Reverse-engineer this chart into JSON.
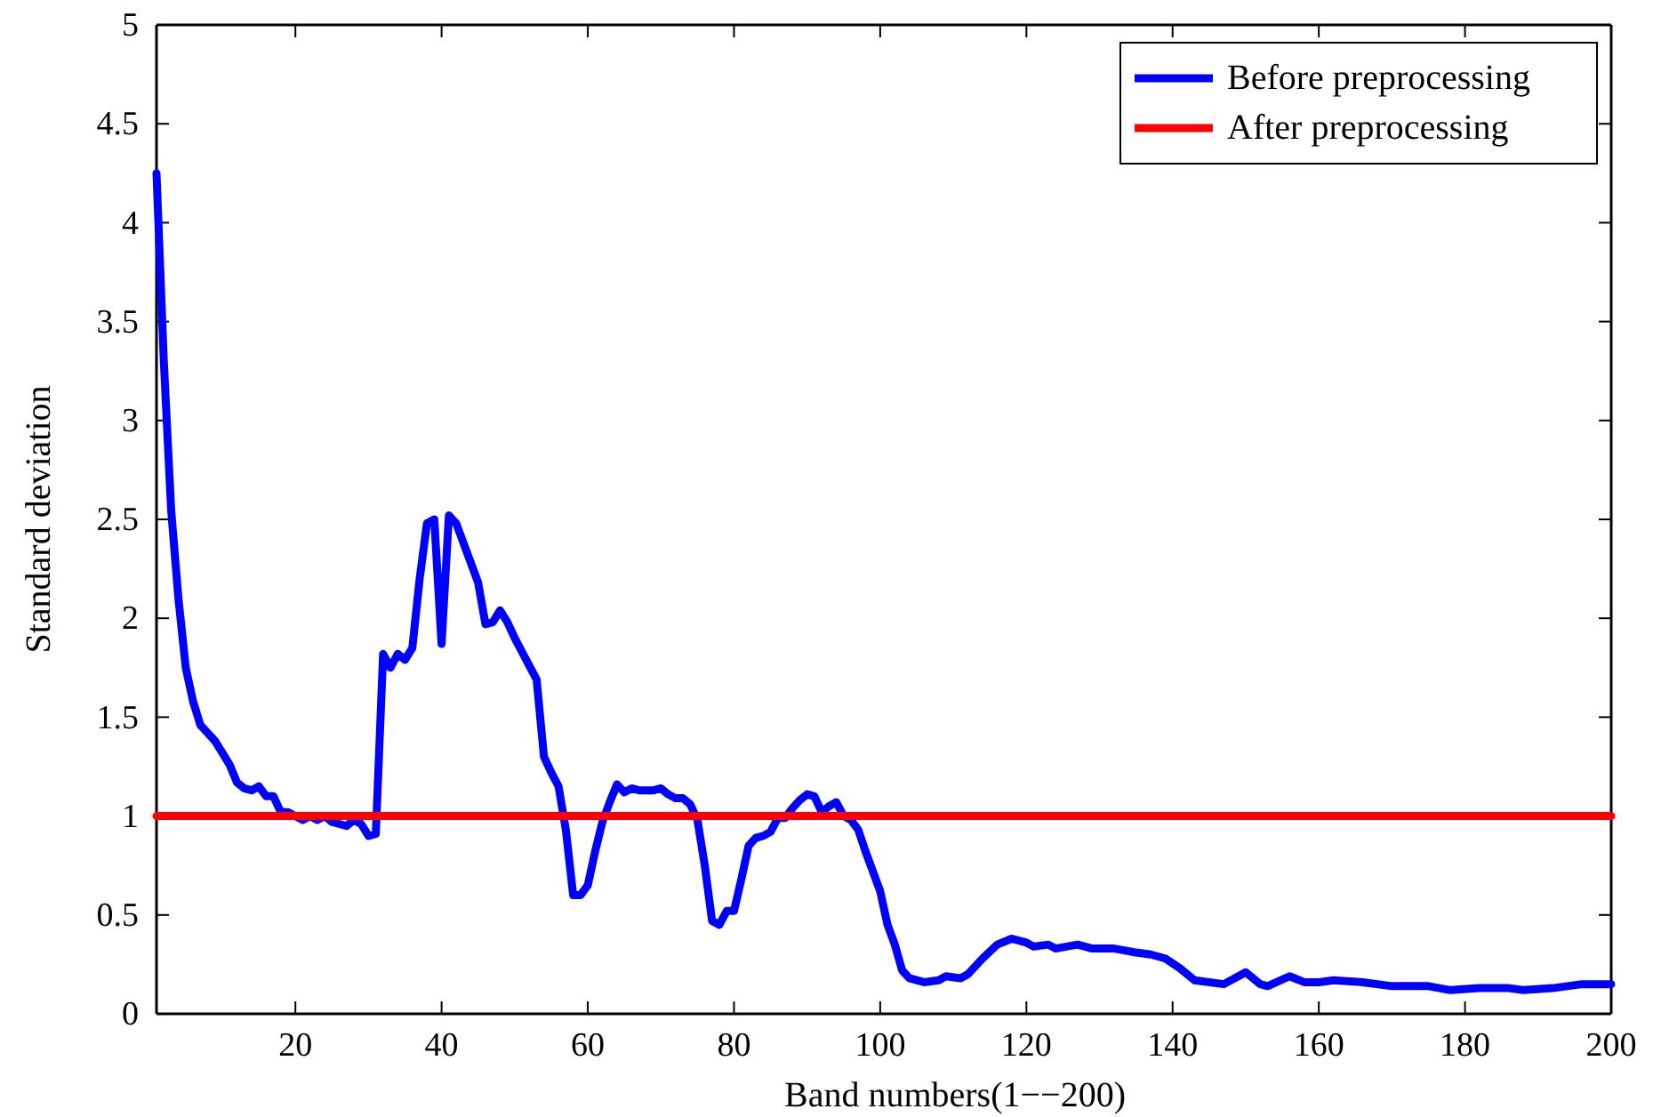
{
  "chart_data": {
    "type": "line",
    "xlabel": "Band numbers(1−−200)",
    "ylabel": "Standard deviation",
    "xlim": [
      1,
      200
    ],
    "ylim": [
      0,
      5
    ],
    "xticks": [
      20,
      40,
      60,
      80,
      100,
      120,
      140,
      160,
      180,
      200
    ],
    "yticks": [
      0,
      0.5,
      1,
      1.5,
      2,
      2.5,
      3,
      3.5,
      4,
      4.5,
      5
    ],
    "grid": false,
    "legend": "top right",
    "line_style": "solid",
    "marker": "none",
    "series": [
      {
        "name": "Before preprocessing",
        "color": "#0000ff",
        "x": [
          1,
          2,
          3,
          4,
          5,
          6,
          7,
          9,
          10,
          11,
          12,
          13,
          14,
          15,
          16,
          17,
          18,
          19,
          20,
          21,
          22,
          23,
          24,
          25,
          26,
          27,
          28,
          29,
          30,
          31,
          32,
          33,
          34,
          35,
          36,
          37,
          38,
          39,
          40,
          41,
          42,
          43,
          44,
          45,
          46,
          47,
          48,
          49,
          50,
          51,
          52,
          53,
          54,
          55,
          56,
          57,
          58,
          59,
          60,
          61,
          62,
          63,
          64,
          65,
          66,
          67,
          68,
          69,
          70,
          71,
          72,
          73,
          74,
          75,
          76,
          77,
          78,
          79,
          80,
          81,
          82,
          83,
          84,
          85,
          86,
          87,
          88,
          89,
          90,
          91,
          92,
          93,
          94,
          95,
          96,
          97,
          98,
          99,
          100,
          101,
          102,
          103,
          104,
          106,
          108,
          109,
          111,
          112,
          114,
          116,
          118,
          120,
          121,
          123,
          124,
          127,
          129,
          132,
          135,
          137,
          139,
          141,
          143,
          147,
          150,
          152,
          153,
          156,
          158,
          160,
          162,
          166,
          170,
          175,
          178,
          182,
          186,
          188,
          192,
          196,
          200
        ],
        "values": [
          4.25,
          3.3,
          2.55,
          2.1,
          1.75,
          1.58,
          1.46,
          1.38,
          1.32,
          1.26,
          1.17,
          1.14,
          1.13,
          1.15,
          1.1,
          1.1,
          1.02,
          1.02,
          1,
          0.98,
          1,
          0.98,
          1,
          0.97,
          0.96,
          0.95,
          0.98,
          0.96,
          0.9,
          0.91,
          1.82,
          1.75,
          1.82,
          1.79,
          1.85,
          2.2,
          2.48,
          2.5,
          1.87,
          2.52,
          2.48,
          2.38,
          2.28,
          2.18,
          1.97,
          1.98,
          2.04,
          1.98,
          1.9,
          1.83,
          1.76,
          1.69,
          1.3,
          1.22,
          1.15,
          0.93,
          0.6,
          0.6,
          0.65,
          0.82,
          0.97,
          1.07,
          1.16,
          1.12,
          1.14,
          1.13,
          1.13,
          1.13,
          1.14,
          1.11,
          1.09,
          1.09,
          1.06,
          0.98,
          0.75,
          0.47,
          0.45,
          0.52,
          0.52,
          0.68,
          0.85,
          0.89,
          0.9,
          0.92,
          0.99,
          0.99,
          1.04,
          1.08,
          1.11,
          1.1,
          1.02,
          1.05,
          1.07,
          1,
          0.98,
          0.93,
          0.82,
          0.72,
          0.62,
          0.45,
          0.35,
          0.22,
          0.18,
          0.16,
          0.17,
          0.19,
          0.18,
          0.2,
          0.28,
          0.35,
          0.38,
          0.36,
          0.34,
          0.35,
          0.33,
          0.35,
          0.33,
          0.33,
          0.31,
          0.3,
          0.28,
          0.23,
          0.17,
          0.15,
          0.21,
          0.15,
          0.14,
          0.19,
          0.16,
          0.16,
          0.17,
          0.16,
          0.14,
          0.14,
          0.12,
          0.13,
          0.13,
          0.12,
          0.13,
          0.15,
          0.15
        ]
      },
      {
        "name": "After preprocessing",
        "color": "#ff0000",
        "x": [
          1,
          200
        ],
        "values": [
          1,
          1
        ]
      }
    ]
  }
}
